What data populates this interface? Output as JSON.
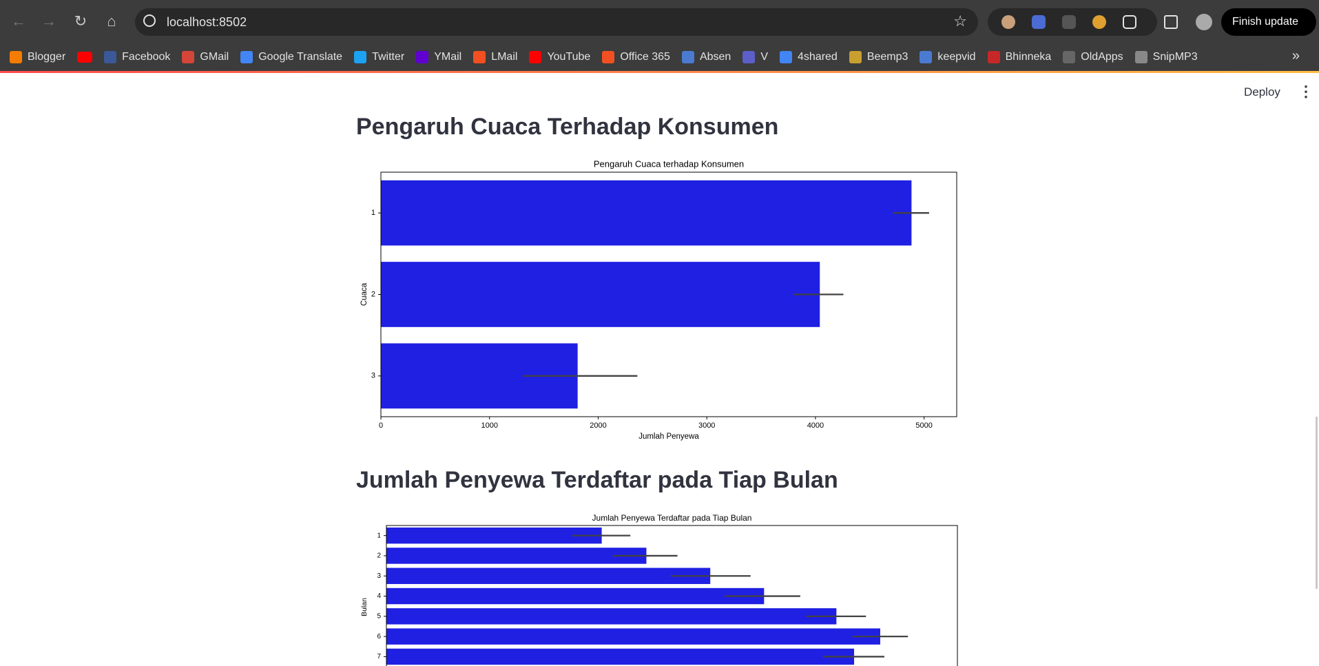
{
  "browser": {
    "url": "localhost:8502",
    "update_button": "Finish update",
    "bookmarks": [
      "Blogger",
      "Facebook",
      "GMail",
      "Google Translate",
      "Twitter",
      "YMail",
      "LMail",
      "YouTube",
      "Office 365",
      "Absen",
      "V",
      "4shared",
      "Beemp3",
      "keepvid",
      "Bhinneka",
      "OldApps",
      "SnipMP3"
    ]
  },
  "app": {
    "deploy": "Deploy",
    "headings": [
      "Pengaruh Cuaca Terhadap Konsumen",
      "Jumlah Penyewa Terdaftar pada Tiap Bulan"
    ]
  },
  "chart_data": [
    {
      "type": "bar",
      "orientation": "horizontal",
      "title": "Pengaruh Cuaca terhadap Konsumen",
      "xlabel": "Jumlah Penyewa",
      "ylabel": "Cuaca",
      "categories": [
        "1",
        "2",
        "3"
      ],
      "values": [
        4884,
        4040,
        1811
      ],
      "ci_low": [
        4714,
        3800,
        1308
      ],
      "ci_high": [
        5046,
        4257,
        2361
      ],
      "color": "#2020e3",
      "xlim": [
        0,
        5300
      ],
      "xticks": [
        0,
        1000,
        2000,
        3000,
        4000,
        5000
      ]
    },
    {
      "type": "bar",
      "orientation": "horizontal",
      "title": "Jumlah Penyewa Terdaftar pada Tiap Bulan",
      "ylabel": "Bulan",
      "categories": [
        "1",
        "2",
        "3",
        "4",
        "5",
        "6",
        "7"
      ],
      "values": [
        2093,
        2527,
        3148,
        3671,
        4374,
        4800,
        4546
      ],
      "ci_low": [
        1807,
        2200,
        2764,
        3287,
        4080,
        4530,
        4244
      ],
      "ci_high": [
        2371,
        2829,
        3540,
        4023,
        4661,
        5069,
        4840
      ],
      "color": "#2020e3",
      "xlim": [
        0,
        5550
      ]
    }
  ]
}
